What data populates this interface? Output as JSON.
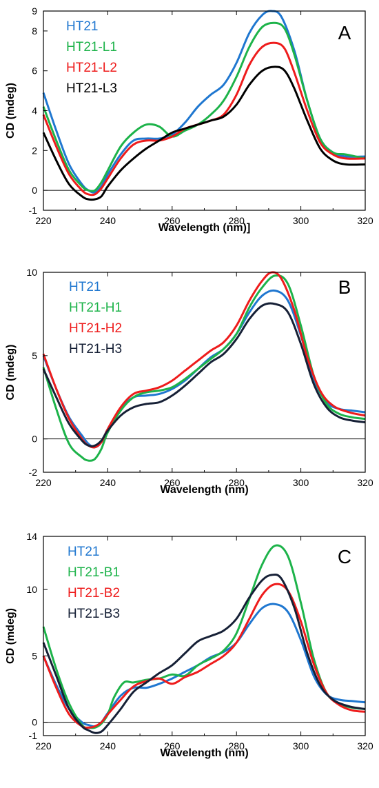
{
  "chart_data": [
    {
      "type": "line",
      "panel_label": "A",
      "xlabel": "Wavelength (nm)]",
      "ylabel": "CD (mdeg)",
      "xlim": [
        220,
        320
      ],
      "ylim": [
        -1,
        9
      ],
      "xticks": [
        220,
        240,
        260,
        280,
        300,
        320
      ],
      "yticks": [
        -1,
        0,
        2,
        4,
        6,
        8,
        9
      ],
      "zero_line": true,
      "legend_position": "top-left",
      "series": [
        {
          "name": "HT21",
          "color": "#1f77d0",
          "x": [
            220,
            224,
            228,
            232,
            234,
            236,
            238,
            240,
            244,
            248,
            252,
            256,
            260,
            264,
            268,
            272,
            276,
            280,
            284,
            288,
            291,
            294,
            298,
            302,
            306,
            310,
            314,
            320
          ],
          "y": [
            4.9,
            3.0,
            1.3,
            0.3,
            0.0,
            -0.1,
            0.2,
            0.8,
            1.8,
            2.5,
            2.6,
            2.6,
            2.8,
            3.4,
            4.2,
            4.8,
            5.3,
            6.4,
            7.9,
            8.8,
            9.0,
            8.7,
            7.0,
            4.5,
            2.6,
            1.9,
            1.7,
            1.7
          ]
        },
        {
          "name": "HT21-L1",
          "color": "#1db34a",
          "x": [
            220,
            224,
            228,
            232,
            234,
            236,
            238,
            240,
            244,
            248,
            252,
            256,
            260,
            264,
            268,
            272,
            276,
            280,
            284,
            288,
            292,
            295,
            298,
            302,
            306,
            310,
            314,
            320
          ],
          "y": [
            4.2,
            2.5,
            1.0,
            0.2,
            0.0,
            0.0,
            0.4,
            1.0,
            2.2,
            2.9,
            3.3,
            3.2,
            2.7,
            3.0,
            3.3,
            3.8,
            4.5,
            5.7,
            7.2,
            8.2,
            8.4,
            8.1,
            6.8,
            4.5,
            2.6,
            1.9,
            1.8,
            1.6
          ]
        },
        {
          "name": "HT21-L2",
          "color": "#ee1c1c",
          "x": [
            220,
            224,
            228,
            232,
            234,
            236,
            238,
            240,
            244,
            248,
            252,
            256,
            260,
            264,
            268,
            272,
            276,
            280,
            284,
            288,
            292,
            295,
            298,
            302,
            306,
            310,
            314,
            320
          ],
          "y": [
            3.8,
            2.2,
            0.8,
            0.0,
            -0.2,
            -0.2,
            0.1,
            0.6,
            1.6,
            2.3,
            2.5,
            2.5,
            2.7,
            3.1,
            3.3,
            3.5,
            3.8,
            4.8,
            6.3,
            7.2,
            7.4,
            7.1,
            5.9,
            4.0,
            2.4,
            1.8,
            1.6,
            1.6
          ]
        },
        {
          "name": "HT21-L3",
          "color": "#000000",
          "x": [
            220,
            224,
            228,
            232,
            234,
            236,
            238,
            240,
            244,
            248,
            252,
            256,
            260,
            264,
            268,
            272,
            276,
            280,
            284,
            288,
            292,
            295,
            298,
            302,
            306,
            310,
            314,
            320
          ],
          "y": [
            2.9,
            1.5,
            0.3,
            -0.3,
            -0.45,
            -0.45,
            -0.3,
            0.2,
            1.0,
            1.6,
            2.1,
            2.5,
            2.9,
            3.1,
            3.3,
            3.5,
            3.7,
            4.3,
            5.3,
            6.0,
            6.2,
            6.0,
            5.1,
            3.5,
            2.1,
            1.5,
            1.3,
            1.3
          ]
        }
      ]
    },
    {
      "type": "line",
      "panel_label": "B",
      "xlabel": "Wavelength (nm)",
      "ylabel": "CD (mdeg)",
      "xlim": [
        220,
        320
      ],
      "ylim": [
        -2,
        10
      ],
      "xticks": [
        220,
        240,
        260,
        280,
        300,
        320
      ],
      "yticks": [
        -2,
        0,
        5,
        10
      ],
      "zero_line": true,
      "legend_position": "top-left",
      "series": [
        {
          "name": "HT21",
          "color": "#1f77d0",
          "x": [
            220,
            224,
            228,
            232,
            234,
            236,
            238,
            240,
            244,
            248,
            252,
            256,
            260,
            264,
            268,
            272,
            276,
            280,
            284,
            288,
            292,
            296,
            300,
            304,
            308,
            312,
            316,
            320
          ],
          "y": [
            5.0,
            3.0,
            1.3,
            0.2,
            -0.3,
            -0.5,
            -0.2,
            0.6,
            1.8,
            2.5,
            2.6,
            2.7,
            3.0,
            3.5,
            4.2,
            4.9,
            5.4,
            6.3,
            7.6,
            8.6,
            8.9,
            8.3,
            6.2,
            3.6,
            2.2,
            1.8,
            1.7,
            1.6
          ]
        },
        {
          "name": "HT21-H1",
          "color": "#1db34a",
          "x": [
            220,
            224,
            228,
            232,
            234,
            236,
            238,
            240,
            244,
            248,
            252,
            256,
            260,
            264,
            268,
            272,
            276,
            280,
            284,
            288,
            292,
            296,
            300,
            304,
            308,
            312,
            316,
            320
          ],
          "y": [
            4.3,
            1.8,
            -0.3,
            -1.1,
            -1.3,
            -1.2,
            -0.6,
            0.4,
            1.7,
            2.5,
            2.8,
            2.9,
            3.1,
            3.6,
            4.2,
            4.8,
            5.4,
            6.3,
            7.9,
            9.1,
            9.8,
            9.3,
            6.8,
            3.8,
            2.1,
            1.5,
            1.3,
            1.2
          ]
        },
        {
          "name": "HT21-H2",
          "color": "#ee1c1c",
          "x": [
            220,
            224,
            228,
            232,
            234,
            236,
            238,
            240,
            244,
            248,
            252,
            256,
            260,
            264,
            268,
            272,
            276,
            280,
            284,
            288,
            291,
            294,
            298,
            302,
            306,
            310,
            315,
            320
          ],
          "y": [
            5.1,
            3.0,
            1.2,
            0.0,
            -0.4,
            -0.5,
            -0.2,
            0.6,
            1.9,
            2.7,
            2.9,
            3.1,
            3.5,
            4.1,
            4.7,
            5.3,
            5.8,
            6.8,
            8.3,
            9.5,
            10.0,
            9.6,
            7.7,
            4.9,
            2.9,
            2.0,
            1.6,
            1.4
          ]
        },
        {
          "name": "HT21-H3",
          "color": "#162036",
          "x": [
            220,
            224,
            228,
            232,
            234,
            236,
            238,
            240,
            244,
            248,
            252,
            256,
            260,
            264,
            268,
            272,
            276,
            280,
            284,
            288,
            292,
            296,
            300,
            304,
            308,
            312,
            316,
            320
          ],
          "y": [
            4.2,
            2.5,
            0.9,
            -0.1,
            -0.4,
            -0.4,
            -0.1,
            0.5,
            1.4,
            1.9,
            2.1,
            2.2,
            2.6,
            3.2,
            3.9,
            4.6,
            5.1,
            6.0,
            7.2,
            8.0,
            8.1,
            7.6,
            5.7,
            3.3,
            1.9,
            1.3,
            1.1,
            1.0
          ]
        }
      ]
    },
    {
      "type": "line",
      "panel_label": "C",
      "xlabel": "Wavelength (nm)",
      "ylabel": "CD (mdeg)",
      "xlim": [
        220,
        320
      ],
      "ylim": [
        -1,
        14
      ],
      "xticks": [
        220,
        240,
        260,
        280,
        300,
        320
      ],
      "yticks": [
        -1,
        0,
        5,
        10,
        14
      ],
      "zero_line": true,
      "legend_position": "top-left",
      "series": [
        {
          "name": "HT21",
          "color": "#1f77d0",
          "x": [
            220,
            224,
            228,
            232,
            234,
            236,
            238,
            240,
            244,
            248,
            252,
            256,
            260,
            264,
            268,
            272,
            276,
            280,
            284,
            288,
            292,
            296,
            300,
            304,
            308,
            312,
            316,
            320
          ],
          "y": [
            5.0,
            2.8,
            1.0,
            0.0,
            -0.2,
            -0.3,
            0.0,
            0.7,
            2.0,
            2.6,
            2.6,
            2.9,
            3.3,
            3.8,
            4.3,
            4.9,
            5.3,
            6.0,
            7.4,
            8.6,
            8.9,
            8.3,
            6.2,
            3.5,
            2.1,
            1.7,
            1.6,
            1.5
          ]
        },
        {
          "name": "HT21-B1",
          "color": "#1db34a",
          "x": [
            220,
            224,
            228,
            232,
            234,
            236,
            238,
            240,
            242,
            245,
            248,
            252,
            256,
            260,
            264,
            268,
            272,
            276,
            280,
            284,
            288,
            292,
            296,
            300,
            304,
            308,
            312,
            316,
            320
          ],
          "y": [
            7.2,
            4.0,
            1.4,
            -0.2,
            -0.4,
            -0.4,
            -0.1,
            0.6,
            1.9,
            3.0,
            3.0,
            3.2,
            3.3,
            3.6,
            3.5,
            4.3,
            4.8,
            5.4,
            6.7,
            9.3,
            11.9,
            13.3,
            12.5,
            9.0,
            4.8,
            2.2,
            1.4,
            1.1,
            1.0
          ]
        },
        {
          "name": "HT21-B2",
          "color": "#ee1c1c",
          "x": [
            220,
            224,
            228,
            232,
            234,
            236,
            238,
            240,
            244,
            248,
            252,
            256,
            260,
            264,
            268,
            272,
            276,
            280,
            284,
            288,
            292,
            296,
            300,
            304,
            308,
            312,
            316,
            320
          ],
          "y": [
            5.0,
            2.6,
            0.6,
            -0.3,
            -0.4,
            -0.3,
            0.0,
            0.6,
            1.7,
            2.7,
            3.1,
            3.3,
            2.9,
            3.4,
            3.8,
            4.4,
            5.0,
            6.0,
            7.8,
            9.6,
            10.4,
            9.9,
            7.6,
            4.4,
            2.2,
            1.3,
            0.9,
            0.8
          ]
        },
        {
          "name": "HT21-B3",
          "color": "#162036",
          "x": [
            220,
            224,
            228,
            232,
            234,
            236,
            238,
            240,
            244,
            248,
            252,
            256,
            260,
            264,
            268,
            272,
            276,
            280,
            284,
            288,
            291,
            294,
            298,
            302,
            306,
            310,
            315,
            320
          ],
          "y": [
            6.0,
            3.5,
            1.0,
            -0.3,
            -0.6,
            -0.8,
            -0.7,
            -0.2,
            1.0,
            2.3,
            3.0,
            3.7,
            4.3,
            5.2,
            6.1,
            6.5,
            6.9,
            7.8,
            9.4,
            10.7,
            11.1,
            10.8,
            8.6,
            5.2,
            2.8,
            1.7,
            1.2,
            1.0
          ]
        }
      ]
    }
  ]
}
